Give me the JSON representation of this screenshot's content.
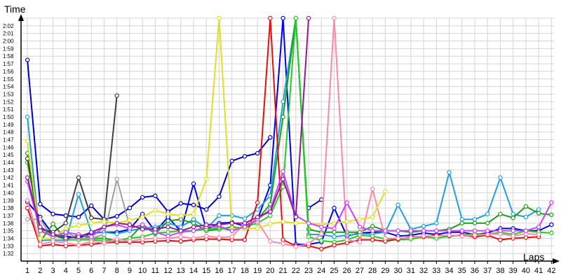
{
  "chart_data": {
    "type": "line",
    "title": "",
    "ylabel": "Time",
    "xlabel": "Laps",
    "x_ticks": [
      1,
      2,
      3,
      4,
      5,
      6,
      7,
      8,
      9,
      10,
      11,
      12,
      13,
      14,
      15,
      16,
      17,
      18,
      19,
      20,
      21,
      22,
      23,
      24,
      25,
      26,
      27,
      28,
      29,
      30,
      31,
      32,
      33,
      34,
      35,
      36,
      37,
      38,
      39,
      40,
      41,
      42
    ],
    "y_tick_labels": [
      "1:32",
      "1:33",
      "1:34",
      "1:35",
      "1:36",
      "1:37",
      "1:38",
      "1:39",
      "1:40",
      "1:41",
      "1:42",
      "1:43",
      "1:44",
      "1:45",
      "1:46",
      "1:47",
      "1:48",
      "1:49",
      "1:50",
      "1:51",
      "1:52",
      "1:53",
      "1:54",
      "1:55",
      "1:56",
      "1:57",
      "1:58",
      "1:59",
      "2:00",
      "2:01",
      "2:02"
    ],
    "ylim_seconds": [
      91,
      123
    ],
    "xlim": [
      0.5,
      42.2
    ],
    "grid": true,
    "legend": "none",
    "series": [
      {
        "color": "#0000c0",
        "values": [
          117.5,
          98.5,
          97.2,
          97.0,
          96.8,
          98.3,
          96.5,
          96.9,
          98.0,
          99.4,
          99.6,
          97.5,
          98.6,
          98.4,
          97.8,
          99.5,
          104.2,
          104.8,
          105.2,
          107.3,
          null,
          null,
          98.0,
          99.1,
          null,
          null,
          null,
          null,
          null,
          null,
          null,
          null,
          null,
          null,
          null,
          null,
          null,
          null,
          null,
          null,
          null,
          null
        ]
      },
      {
        "color": "#0000f0",
        "values": [
          98.8,
          96.8,
          94.5,
          94.3,
          94.0,
          94.7,
          94.8,
          94.8,
          95.2,
          97.2,
          94.9,
          96.8,
          94.9,
          101.2,
          95.2,
          96.0,
          96.1,
          95.6,
          96.5,
          101.0,
          123.0,
          93.2,
          93.2,
          93.5,
          98.0,
          94.3,
          94.7,
          94.8,
          94.8,
          94.3,
          94.4,
          94.7,
          94.5,
          94.8,
          94.8,
          94.5,
          94.7,
          95.3,
          95.3,
          95.0,
          95.0,
          95.8
        ]
      },
      {
        "color": "#1ea0e0",
        "values": [
          110.0,
          93.7,
          93.8,
          93.7,
          99.8,
          94.8,
          94.8,
          94.6,
          95.0,
          95.3,
          95.5,
          96.0,
          95.5,
          96.5,
          95.3,
          97.0,
          97.0,
          96.6,
          97.8,
          99.6,
          112.0,
          123.0,
          94.5,
          94.5,
          94.2,
          94.4,
          94.6,
          94.6,
          94.8,
          98.4,
          95.2,
          95.6,
          96.0,
          102.7,
          96.5,
          96.5,
          97.2,
          102.0,
          97.2,
          96.8,
          97.8,
          null
        ]
      },
      {
        "color": "#1a9e1a",
        "values": [
          105.2,
          93.6,
          95.9,
          93.8,
          94.5,
          94.0,
          94.0,
          93.7,
          94.0,
          95.8,
          94.6,
          96.3,
          96.5,
          96.0,
          95.0,
          95.2,
          95.5,
          95.3,
          96.5,
          98.5,
          110.0,
          123.0,
          95.2,
          94.8,
          94.8,
          94.8,
          94.8,
          95.6,
          95.0,
          95.0,
          94.8,
          95.0,
          95.0,
          95.2,
          96.0,
          96.0,
          96.0,
          97.2,
          96.7,
          98.2,
          97.3,
          97.1
        ]
      },
      {
        "color": "#22cc22",
        "values": [
          104.0,
          95.0,
          94.4,
          93.8,
          93.8,
          93.8,
          93.7,
          93.7,
          94.0,
          94.2,
          94.7,
          94.8,
          95.0,
          95.0,
          95.2,
          95.4,
          95.0,
          95.5,
          96.0,
          97.0,
          100.8,
          123.0,
          94.2,
          93.7,
          93.5,
          93.8,
          94.4,
          94.3,
          93.9,
          93.8,
          93.9,
          94.2,
          94.0,
          94.3,
          94.4,
          94.6,
          94.5,
          94.8,
          94.5,
          95.0,
          94.8,
          94.7
        ]
      },
      {
        "color": "#e01010",
        "values": [
          98.0,
          93.0,
          93.2,
          93.0,
          93.1,
          93.2,
          93.4,
          93.5,
          93.5,
          93.5,
          93.6,
          93.7,
          93.6,
          93.8,
          93.9,
          93.9,
          93.8,
          93.8,
          98.7,
          123.0,
          93.8,
          93.0,
          93.0,
          92.6,
          93.1,
          93.4,
          93.8,
          93.8,
          93.6,
          93.9,
          94.2,
          94.2,
          94.4,
          94.3,
          94.4,
          94.2,
          94.4,
          93.8,
          94.0,
          94.1,
          94.2,
          null
        ]
      },
      {
        "color": "#ff88aa",
        "values": [
          99.0,
          93.2,
          93.6,
          93.4,
          93.1,
          93.6,
          93.4,
          93.9,
          93.6,
          93.9,
          94.0,
          94.0,
          94.2,
          94.0,
          94.3,
          94.1,
          94.2,
          96.0,
          96.2,
          93.6,
          93.3,
          92.9,
          93.3,
          94.6,
          123.0,
          93.8,
          93.5,
          100.5,
          94.0,
          94.0,
          94.1,
          94.3,
          94.3,
          94.4,
          94.3,
          94.4,
          94.5,
          94.6,
          94.3,
          94.6,
          94.5,
          null
        ]
      },
      {
        "color": "#a0a0a0",
        "values": [
          96.5,
          96.5,
          94.0,
          94.8,
          94.0,
          94.0,
          94.5,
          101.8,
          95.6,
          null,
          null,
          null,
          null,
          null,
          null,
          null,
          null,
          null,
          null,
          null,
          null,
          null,
          null,
          null,
          null,
          null,
          null,
          null,
          null,
          null,
          null,
          null,
          null,
          null,
          null,
          null,
          null,
          null,
          null,
          null,
          null,
          null
        ]
      },
      {
        "color": "#404040",
        "values": [
          104.5,
          95.2,
          94.8,
          96.0,
          102.0,
          96.7,
          96.5,
          112.8,
          null,
          null,
          null,
          null,
          null,
          null,
          null,
          null,
          null,
          null,
          null,
          null,
          null,
          null,
          null,
          null,
          null,
          null,
          null,
          null,
          null,
          null,
          null,
          null,
          null,
          null,
          null,
          null,
          null,
          null,
          null,
          null,
          null,
          null
        ]
      },
      {
        "color": "#e0e020",
        "values": [
          106.8,
          94.0,
          94.0,
          95.3,
          95.7,
          96.0,
          96.2,
          96.0,
          96.4,
          96.8,
          97.7,
          97.2,
          97.0,
          97.2,
          101.8,
          123.0,
          95.3,
          95.3,
          95.3,
          95.9,
          96.2,
          96.0,
          96.0,
          95.8,
          96.0,
          96.2,
          96.5,
          96.8,
          100.2,
          null,
          null,
          null,
          null,
          null,
          null,
          null,
          null,
          null,
          null,
          null,
          null,
          null
        ]
      },
      {
        "color": "#cc40ff",
        "values": [
          101.5,
          95.0,
          94.2,
          94.8,
          94.5,
          94.2,
          95.5,
          95.8,
          95.3,
          95.8,
          94.8,
          94.3,
          94.8,
          95.0,
          95.5,
          95.6,
          95.0,
          95.5,
          96.5,
          97.8,
          102.8,
          97.0,
          96.0,
          95.5,
          95.3,
          98.7,
          95.5,
          95.0,
          95.0,
          95.0,
          95.0,
          95.0,
          95.0,
          95.0,
          95.0,
          95.0,
          95.0,
          95.0,
          95.0,
          95.0,
          95.5,
          98.7
        ]
      },
      {
        "color": "#8e1d8e",
        "values": [
          102.0,
          95.5,
          94.5,
          94.0,
          94.2,
          94.8,
          95.5,
          96.0,
          95.8,
          95.2,
          95.2,
          95.5,
          95.0,
          95.5,
          95.8,
          95.8,
          96.0,
          96.0,
          96.8,
          97.5,
          101.8,
          96.8,
          123.0,
          null,
          null,
          null,
          null,
          null,
          null,
          null,
          null,
          null,
          null,
          null,
          null,
          null,
          null,
          null,
          null,
          null,
          null,
          null
        ]
      }
    ]
  }
}
